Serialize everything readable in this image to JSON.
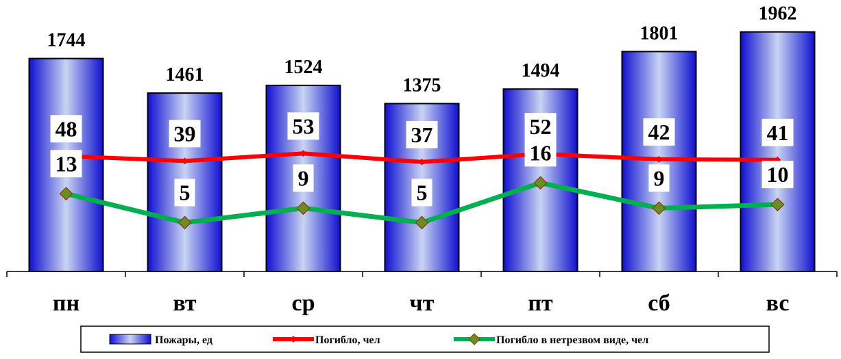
{
  "chart_data": {
    "type": "bar",
    "categories": [
      "пн",
      "вт",
      "ср",
      "чт",
      "пт",
      "сб",
      "вс"
    ],
    "series": [
      {
        "name": "Пожары, ед",
        "kind": "bar",
        "values": [
          1744,
          1461,
          1524,
          1375,
          1494,
          1801,
          1962
        ],
        "color": "#2222dd"
      },
      {
        "name": "Погибло, чел",
        "kind": "line",
        "values": [
          48,
          39,
          53,
          37,
          52,
          42,
          41
        ],
        "color": "#ff0000"
      },
      {
        "name": "Погибло в нетрезвом виде, чел",
        "kind": "line",
        "values": [
          13,
          5,
          9,
          5,
          16,
          9,
          10
        ],
        "color": "#00b050"
      }
    ],
    "title": "",
    "xlabel": "",
    "ylabel": "",
    "legend": "bottom",
    "grid": false
  }
}
